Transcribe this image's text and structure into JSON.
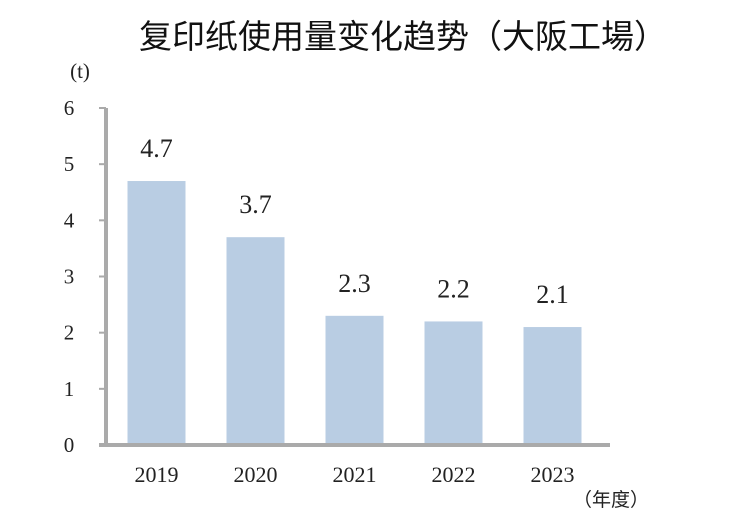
{
  "chart_data": {
    "type": "bar",
    "title": "复印纸使用量变化趋势（大阪工場）",
    "ylabel": "(t)",
    "xlabel": "（年度）",
    "categories": [
      "2019",
      "2020",
      "2021",
      "2022",
      "2023"
    ],
    "values": [
      4.7,
      3.7,
      2.3,
      2.2,
      2.1
    ],
    "value_labels": [
      "4.7",
      "3.7",
      "2.3",
      "2.2",
      "2.1"
    ],
    "ylim": [
      0,
      6
    ],
    "yticks": [
      0,
      1,
      2,
      3,
      4,
      5,
      6
    ],
    "ytick_labels": [
      "0",
      "1",
      "2",
      "3",
      "4",
      "5",
      "6"
    ],
    "grid": false,
    "legend": "none",
    "bar_color": "#b9cde3",
    "axis_color": "#aaaaaa"
  }
}
